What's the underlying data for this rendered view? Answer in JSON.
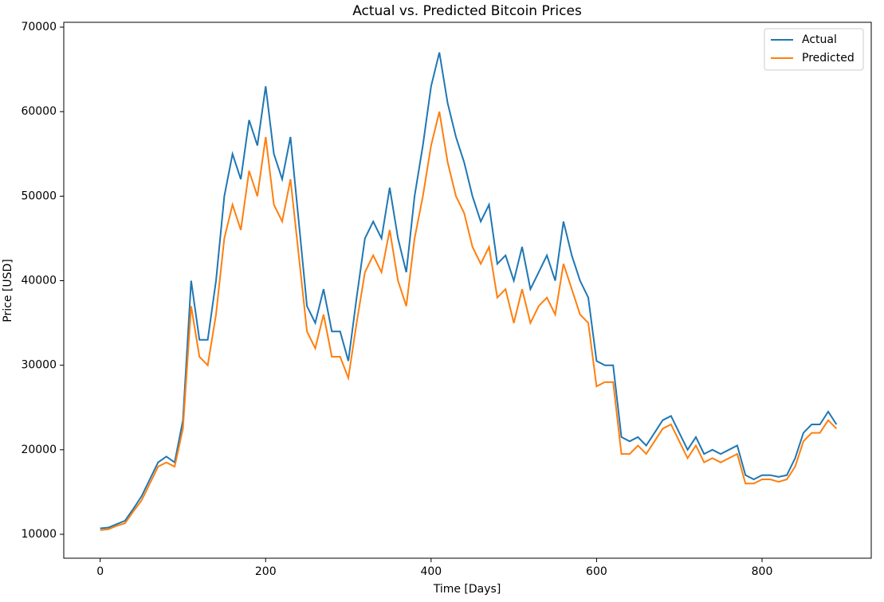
{
  "chart_data": {
    "type": "line",
    "title": "Actual vs. Predicted Bitcoin Prices",
    "x_label": "Time [Days]",
    "y_label": "Price [USD]",
    "x": [
      0,
      10,
      20,
      30,
      40,
      50,
      60,
      70,
      80,
      90,
      100,
      110,
      120,
      130,
      140,
      150,
      160,
      170,
      180,
      190,
      200,
      210,
      220,
      230,
      240,
      250,
      260,
      270,
      280,
      290,
      300,
      310,
      320,
      330,
      340,
      350,
      360,
      370,
      380,
      390,
      400,
      410,
      420,
      430,
      440,
      450,
      460,
      470,
      480,
      490,
      500,
      510,
      520,
      530,
      540,
      550,
      560,
      570,
      580,
      590,
      600,
      610,
      620,
      630,
      640,
      650,
      660,
      670,
      680,
      690,
      700,
      710,
      720,
      730,
      740,
      750,
      760,
      770,
      780,
      790,
      800,
      810,
      820,
      830,
      840,
      850,
      860,
      870,
      880,
      890
    ],
    "series": [
      {
        "name": "Actual",
        "color": "#1f77b4",
        "values": [
          10700,
          10800,
          11200,
          11600,
          13000,
          14500,
          16500,
          18500,
          19200,
          18500,
          23500,
          40000,
          33000,
          33000,
          40000,
          50000,
          55000,
          52000,
          59000,
          56000,
          63000,
          55000,
          52000,
          57000,
          47000,
          37000,
          35000,
          39000,
          34000,
          34000,
          30500,
          38000,
          45000,
          47000,
          45000,
          51000,
          45000,
          41000,
          50000,
          56000,
          63000,
          67000,
          61000,
          57000,
          54000,
          50000,
          47000,
          49000,
          42000,
          43000,
          40000,
          44000,
          39000,
          41000,
          43000,
          40000,
          47000,
          43000,
          40000,
          38000,
          30500,
          30000,
          30000,
          21500,
          21000,
          21500,
          20500,
          22000,
          23500,
          24000,
          22000,
          20000,
          21500,
          19500,
          20000,
          19500,
          20000,
          20500,
          17000,
          16500,
          17000,
          17000,
          16800,
          17000,
          19000,
          22000,
          23000,
          23000,
          24500,
          23000
        ]
      },
      {
        "name": "Predicted",
        "color": "#ff7f0e",
        "values": [
          10500,
          10600,
          11000,
          11300,
          12700,
          14000,
          16000,
          18000,
          18500,
          18000,
          22500,
          37000,
          31000,
          30000,
          36000,
          45000,
          49000,
          46000,
          53000,
          50000,
          57000,
          49000,
          47000,
          52000,
          43000,
          34000,
          32000,
          36000,
          31000,
          31000,
          28500,
          35000,
          41000,
          43000,
          41000,
          46000,
          40000,
          37000,
          45000,
          50000,
          56000,
          60000,
          54000,
          50000,
          48000,
          44000,
          42000,
          44000,
          38000,
          39000,
          35000,
          39000,
          35000,
          37000,
          38000,
          36000,
          42000,
          39000,
          36000,
          35000,
          27500,
          28000,
          28000,
          19500,
          19500,
          20500,
          19500,
          21000,
          22500,
          23000,
          21000,
          19000,
          20500,
          18500,
          19000,
          18500,
          19000,
          19500,
          16000,
          16000,
          16500,
          16500,
          16200,
          16500,
          18000,
          21000,
          22000,
          22000,
          23500,
          22500
        ]
      }
    ],
    "xlim": [
      -44,
      932
    ],
    "ylim": [
      7170,
      70570
    ],
    "xticks": [
      0,
      200,
      400,
      600,
      800
    ],
    "yticks": [
      10000,
      20000,
      30000,
      40000,
      50000,
      60000,
      70000
    ],
    "grid": false,
    "legend": "upper right"
  }
}
